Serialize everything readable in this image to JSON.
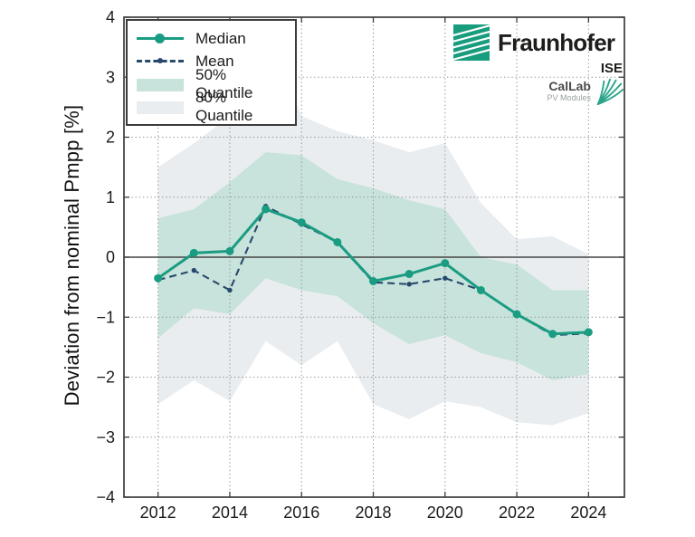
{
  "legend": {
    "position": "upper-left",
    "items": [
      {
        "label": "Median",
        "swatch": "teal-line-with-dot",
        "color": "#1a9c82"
      },
      {
        "label": "Mean",
        "swatch": "navy-dashed-with-dot",
        "color": "#27496d"
      },
      {
        "label": "50% Quantile",
        "swatch": "filled-band",
        "color": "#c8e3db"
      },
      {
        "label": "80% Quantile",
        "swatch": "filled-band",
        "color": "#e9edf0"
      }
    ]
  },
  "branding": {
    "fraunhofer": {
      "name": "Fraunhofer",
      "institute": "ISE",
      "logo_color": "#179c7d"
    },
    "callab": {
      "name": "CalLab",
      "sub": "PV Modules",
      "fan_color": "#2aa58a"
    }
  },
  "colors": {
    "median_line": "#1a9c82",
    "mean_line": "#27496d",
    "band_50": "#c8e3db",
    "band_80": "#e9edf0",
    "axis_border": "#3c3c3c",
    "zero_line": "#444444",
    "grid_dots": "#8f969b",
    "tick_text": "#1a1a1a",
    "background": "#ffffff"
  },
  "chart_data": {
    "type": "line",
    "title": "",
    "xlabel": "",
    "ylabel": "Deviation from nominal Pmpp [%]",
    "x": [
      2012,
      2013,
      2014,
      2015,
      2016,
      2017,
      2018,
      2019,
      2020,
      2021,
      2022,
      2023,
      2024
    ],
    "series": [
      {
        "name": "Median",
        "values": [
          -0.35,
          0.07,
          0.1,
          0.8,
          0.58,
          0.25,
          -0.4,
          -0.28,
          -0.1,
          -0.55,
          -0.95,
          -1.28,
          -1.25
        ]
      },
      {
        "name": "Mean",
        "values": [
          -0.38,
          -0.22,
          -0.55,
          0.85,
          0.55,
          0.25,
          -0.42,
          -0.45,
          -0.35,
          -0.55,
          -0.95,
          -1.3,
          -1.27
        ]
      }
    ],
    "bands": [
      {
        "name": "50% Quantile",
        "upper": [
          0.65,
          0.8,
          1.25,
          1.75,
          1.7,
          1.3,
          1.15,
          0.95,
          0.8,
          0.0,
          -0.12,
          -0.55,
          -0.55
        ],
        "lower": [
          -1.35,
          -0.85,
          -0.95,
          -0.35,
          -0.55,
          -0.65,
          -1.1,
          -1.45,
          -1.3,
          -1.6,
          -1.75,
          -2.05,
          -1.95
        ]
      },
      {
        "name": "80% Quantile",
        "upper": [
          1.5,
          1.9,
          2.35,
          3.8,
          2.35,
          2.1,
          1.95,
          1.75,
          1.9,
          0.9,
          0.3,
          0.35,
          0.05
        ],
        "lower": [
          -2.45,
          -2.05,
          -2.4,
          -1.4,
          -1.8,
          -1.4,
          -2.45,
          -2.7,
          -2.4,
          -2.5,
          -2.75,
          -2.8,
          -2.6
        ]
      }
    ],
    "xlim": [
      2011.05,
      2025.0
    ],
    "ylim": [
      -4,
      4
    ],
    "xticks": [
      2012,
      2014,
      2016,
      2018,
      2020,
      2022,
      2024
    ],
    "yticks": [
      -4,
      -3,
      -2,
      -1,
      0,
      1,
      2,
      3,
      4
    ],
    "grid": "dotted, on integer y values and even years; solid line at y=0",
    "legend_position": "upper-left"
  }
}
